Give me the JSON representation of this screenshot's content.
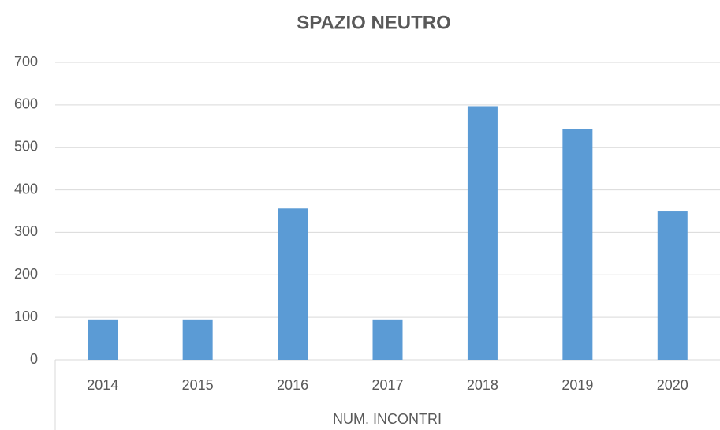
{
  "chart_data": {
    "type": "bar",
    "title": "SPAZIO NEUTRO",
    "x_label": "NUM. INCONTRI",
    "categories": [
      "2014",
      "2015",
      "2016",
      "2017",
      "2018",
      "2019",
      "2020"
    ],
    "values": [
      95,
      95,
      356,
      95,
      597,
      544,
      349
    ],
    "color": "#5b9bd5",
    "ylim": [
      0,
      700
    ],
    "yticks": [
      0,
      100,
      200,
      300,
      400,
      500,
      600,
      700
    ],
    "grid": true
  }
}
